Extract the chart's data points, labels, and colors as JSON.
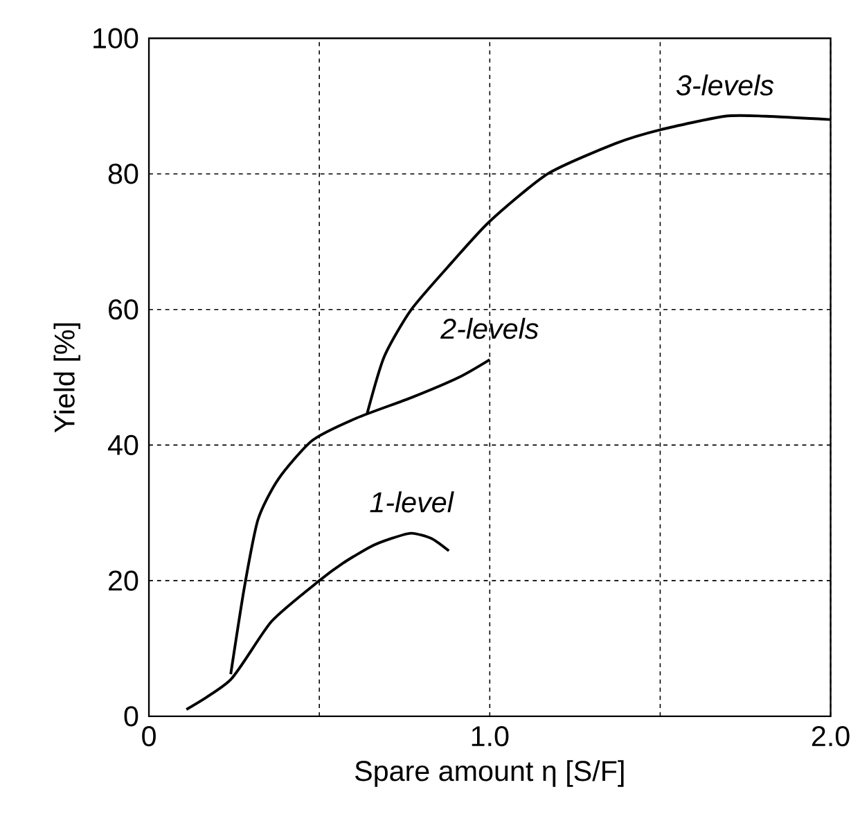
{
  "chart_data": {
    "type": "line",
    "xlabel": "Spare amount η [S/F]",
    "ylabel": "Yield [%]",
    "xlim": [
      0,
      2.0
    ],
    "ylim": [
      0,
      100
    ],
    "xticks": [
      {
        "value": 0,
        "label": "0"
      },
      {
        "value": 0.5,
        "label": null
      },
      {
        "value": 1.0,
        "label": "1.0"
      },
      {
        "value": 1.5,
        "label": null
      },
      {
        "value": 2.0,
        "label": "2.0"
      }
    ],
    "yticks": [
      0,
      20,
      40,
      60,
      80,
      100
    ],
    "grid": true,
    "legend": false,
    "marker": "none",
    "line_style": "solid",
    "series": [
      {
        "name": "1-level",
        "color": "#000000",
        "x": [
          0.11,
          0.24,
          0.36,
          0.5,
          0.57,
          0.65,
          0.71,
          0.77,
          0.83,
          0.88
        ],
        "values": [
          1,
          5.4,
          14,
          20,
          22.6,
          25,
          26.2,
          27,
          26.2,
          24.4
        ]
      },
      {
        "name": "2-levels",
        "color": "#000000",
        "x": [
          0.24,
          0.28,
          0.32,
          0.38,
          0.48,
          0.61,
          0.77,
          0.91,
          1.0
        ],
        "values": [
          6.2,
          19,
          29,
          35,
          40.7,
          44,
          47,
          50,
          52.6
        ]
      },
      {
        "name": "3-levels",
        "color": "#000000",
        "x": [
          0.64,
          0.69,
          0.77,
          0.89,
          1.0,
          1.17,
          1.37,
          1.5,
          1.69,
          1.81,
          2.0
        ],
        "values": [
          44.6,
          53,
          60,
          67,
          73,
          80,
          84.5,
          86.5,
          88.5,
          88.5,
          88
        ]
      }
    ]
  }
}
